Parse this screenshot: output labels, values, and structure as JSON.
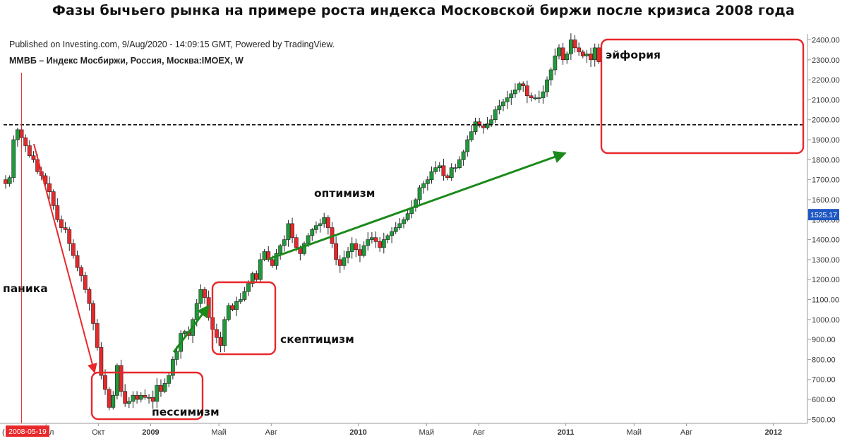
{
  "title": "Фазы бычьего рынка на примере роста индекса Московской биржи после кризиса 2008 года",
  "published": "Published on Investing.com, 9/Aug/2020 - 14:09:15 GMT, Powered by TradingView.",
  "symbol": "ММВБ – Индекс Мосбиржи, Россия, Москва:IMOEX, W",
  "colors": {
    "up": "#1f9a3a",
    "down": "#e8282b",
    "frame": "#e8282b",
    "arrow_red": "#e8282b",
    "arrow_green": "#1a8a1a",
    "price_badge": "#1f57c3",
    "date_badge": "#e8282b"
  },
  "chart_data": {
    "type": "candlestick",
    "ylim": [
      480,
      2430
    ],
    "y_ticks": [
      500,
      600,
      700,
      800,
      900,
      1000,
      1100,
      1200,
      1300,
      1400,
      1500,
      1600,
      1700,
      1800,
      1900,
      2000,
      2100,
      2200,
      2300,
      2400
    ],
    "y_tick_labels": [
      "500.00",
      "600.00",
      "700.00",
      "800.00",
      "900.00",
      "1000.00",
      "1100.00",
      "1200.00",
      "1300.00",
      "1400.00",
      "1500.00",
      "1600.00",
      "1700.00",
      "1800.00",
      "1900.00",
      "2000.00",
      "2100.00",
      "2200.00",
      "2300.00",
      "2400.00"
    ],
    "x_range": [
      "2008-04-21",
      "2012-02-20"
    ],
    "x_ticks": [
      {
        "date": "2008-07-01",
        "label": "Июл",
        "bold": false
      },
      {
        "date": "2008-10-01",
        "label": "Окт",
        "bold": false
      },
      {
        "date": "2009-01-01",
        "label": "2009",
        "bold": true
      },
      {
        "date": "2009-05-01",
        "label": "Май",
        "bold": false
      },
      {
        "date": "2009-08-01",
        "label": "Авг",
        "bold": false
      },
      {
        "date": "2010-01-01",
        "label": "2010",
        "bold": true
      },
      {
        "date": "2010-05-01",
        "label": "Май",
        "bold": false
      },
      {
        "date": "2010-08-01",
        "label": "Авг",
        "bold": false
      },
      {
        "date": "2011-01-01",
        "label": "2011",
        "bold": true
      },
      {
        "date": "2011-05-01",
        "label": "Май",
        "bold": false
      },
      {
        "date": "2011-08-01",
        "label": "Авг",
        "bold": false
      },
      {
        "date": "2012-01-01",
        "label": "2012",
        "bold": true
      }
    ],
    "current_price": "1525.17",
    "current_price_value": 1525.17,
    "marker_date": "2008-05-19",
    "resistance_level": 1975,
    "first_week": "2008-04-21",
    "closes": [
      1680,
      1710,
      1900,
      1950,
      1910,
      1870,
      1820,
      1800,
      1740,
      1720,
      1680,
      1640,
      1570,
      1500,
      1460,
      1450,
      1380,
      1320,
      1260,
      1220,
      1150,
      1080,
      980,
      860,
      720,
      650,
      560,
      620,
      770,
      640,
      580,
      590,
      620,
      600,
      620,
      610,
      610,
      590,
      670,
      640,
      680,
      720,
      800,
      840,
      930,
      940,
      920,
      1000,
      1080,
      1150,
      1110,
      1010,
      950,
      910,
      870,
      1000,
      1070,
      1050,
      1090,
      1100,
      1140,
      1180,
      1230,
      1200,
      1300,
      1340,
      1300,
      1270,
      1330,
      1370,
      1400,
      1480,
      1410,
      1360,
      1330,
      1380,
      1420,
      1450,
      1470,
      1480,
      1510,
      1460,
      1380,
      1300,
      1270,
      1310,
      1340,
      1380,
      1350,
      1320,
      1370,
      1400,
      1410,
      1390,
      1360,
      1400,
      1420,
      1440,
      1460,
      1480,
      1500,
      1530,
      1560,
      1600,
      1660,
      1680,
      1700,
      1740,
      1760,
      1770,
      1720,
      1710,
      1760,
      1760,
      1800,
      1840,
      1900,
      1940,
      1990,
      1970,
      1960,
      1980,
      2000,
      2050,
      2070,
      2090,
      2110,
      2130,
      2150,
      2180,
      2170,
      2120,
      2110,
      2110,
      2110,
      2140,
      2200,
      2250,
      2320,
      2360,
      2300,
      2330,
      2400,
      2360,
      2340,
      2320,
      2330,
      2300,
      2360,
      2290
    ]
  },
  "annotations": {
    "panic": "паника",
    "pessimism": "пессимизм",
    "skepticism": "скептицизм",
    "optimism": "оптимизм",
    "euphoria": "эйфория"
  },
  "date_badge": "2008-05-19",
  "x_axis_left_stub": "("
}
